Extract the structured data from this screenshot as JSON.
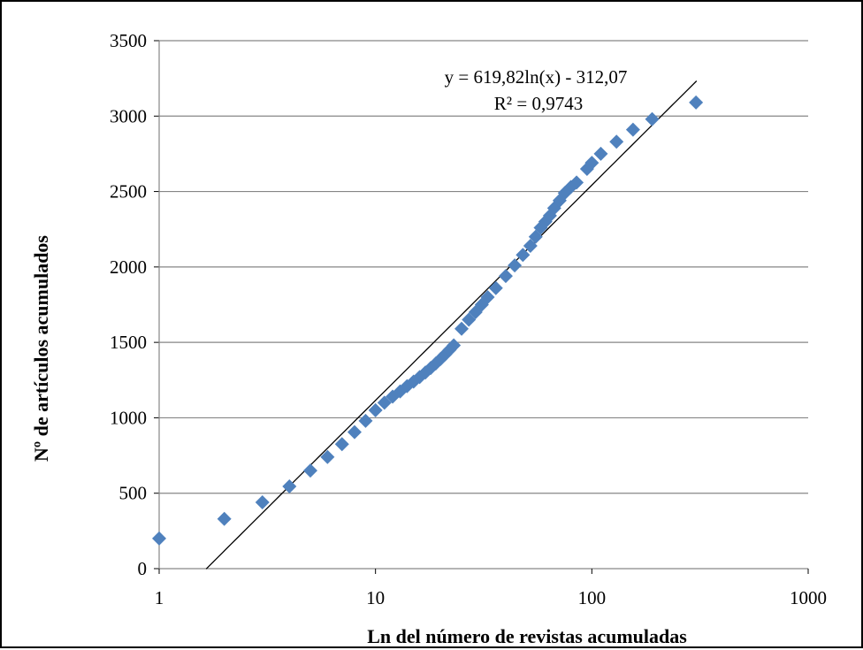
{
  "chart_data": {
    "type": "scatter",
    "xlabel": "Ln del número de revistas acumuladas",
    "ylabel": "Nº de artículos acumulados",
    "x_scale": "log",
    "xlim": [
      1,
      1000
    ],
    "ylim": [
      0,
      3500
    ],
    "x_ticks": [
      "1",
      "10",
      "100",
      "1000"
    ],
    "y_ticks": [
      "0",
      "500",
      "1000",
      "1500",
      "2000",
      "2500",
      "3000",
      "3500"
    ],
    "grid": "horizontal",
    "marker_color": "#4F81BD",
    "series": [
      {
        "marker": "diamond",
        "points": [
          [
            1,
            200
          ],
          [
            2,
            330
          ],
          [
            3,
            440
          ],
          [
            4,
            545
          ],
          [
            5,
            650
          ],
          [
            6,
            740
          ],
          [
            7,
            825
          ],
          [
            8,
            905
          ],
          [
            9,
            980
          ],
          [
            10,
            1050
          ],
          [
            11,
            1100
          ],
          [
            12,
            1140
          ],
          [
            13,
            1175
          ],
          [
            14,
            1210
          ],
          [
            15,
            1240
          ],
          [
            16,
            1270
          ],
          [
            17,
            1300
          ],
          [
            18,
            1330
          ],
          [
            19,
            1360
          ],
          [
            20,
            1390
          ],
          [
            21,
            1420
          ],
          [
            22,
            1450
          ],
          [
            23,
            1480
          ],
          [
            25,
            1590
          ],
          [
            27,
            1650
          ],
          [
            29,
            1700
          ],
          [
            31,
            1750
          ],
          [
            33,
            1800
          ],
          [
            36,
            1860
          ],
          [
            40,
            1940
          ],
          [
            44,
            2010
          ],
          [
            48,
            2080
          ],
          [
            52,
            2140
          ],
          [
            55,
            2200
          ],
          [
            58,
            2260
          ],
          [
            61,
            2300
          ],
          [
            64,
            2340
          ],
          [
            67,
            2390
          ],
          [
            71,
            2440
          ],
          [
            75,
            2490
          ],
          [
            80,
            2530
          ],
          [
            85,
            2560
          ],
          [
            95,
            2650
          ],
          [
            100,
            2690
          ],
          [
            110,
            2750
          ],
          [
            130,
            2830
          ],
          [
            155,
            2910
          ],
          [
            190,
            2980
          ],
          [
            303,
            3090
          ]
        ]
      }
    ],
    "trendline": {
      "type": "logarithmic",
      "a": 619.82,
      "b": -312.07,
      "x_range": [
        1.65,
        305
      ],
      "color": "#000000"
    },
    "annotation": {
      "equation": "y = 619,82ln(x) - 312,07",
      "r2": "R² = 0,9743"
    }
  }
}
